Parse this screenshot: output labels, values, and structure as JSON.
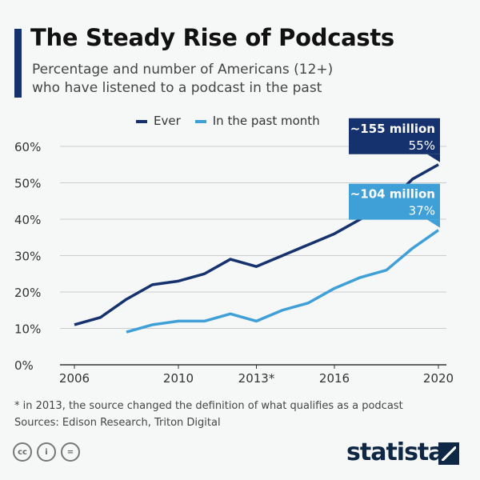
{
  "header": {
    "title": "The Steady Rise of Podcasts",
    "subtitle_line1": "Percentage and number of Americans (12+)",
    "subtitle_line2": "who have listened to a podcast in the past"
  },
  "chart_data": {
    "type": "line",
    "x": [
      2006,
      2007,
      2008,
      2009,
      2010,
      2011,
      2012,
      2013,
      2014,
      2015,
      2016,
      2017,
      2018,
      2019,
      2020
    ],
    "series": [
      {
        "name": "Ever",
        "color": "#15326e",
        "values": [
          11,
          13,
          18,
          22,
          23,
          25,
          29,
          27,
          30,
          33,
          36,
          40,
          44,
          51,
          55
        ]
      },
      {
        "name": "In the past month",
        "color": "#3fa0d8",
        "values": [
          null,
          null,
          9,
          11,
          12,
          12,
          14,
          12,
          15,
          17,
          21,
          24,
          26,
          32,
          37
        ]
      }
    ],
    "xticks": [
      {
        "value": 2006,
        "label": "2006"
      },
      {
        "value": 2010,
        "label": "2010"
      },
      {
        "value": 2013,
        "label": "2013*"
      },
      {
        "value": 2016,
        "label": "2016"
      },
      {
        "value": 2020,
        "label": "2020"
      }
    ],
    "yticks": [
      {
        "value": 0,
        "label": "0%"
      },
      {
        "value": 10,
        "label": "10%"
      },
      {
        "value": 20,
        "label": "20%"
      },
      {
        "value": 30,
        "label": "30%"
      },
      {
        "value": 40,
        "label": "40%"
      },
      {
        "value": 50,
        "label": "50%"
      },
      {
        "value": 60,
        "label": "60%"
      }
    ],
    "ylim": [
      0,
      60
    ],
    "xlim": [
      2006,
      2020
    ],
    "grid": true,
    "legend": "top",
    "annotations": [
      {
        "series": "Ever",
        "line1": "~155 million",
        "line2": "55%"
      },
      {
        "series": "In the past month",
        "line1": "~104 million",
        "line2": "37%"
      }
    ]
  },
  "footer": {
    "note": "* in 2013, the source changed the definition of what qualifies as a podcast",
    "sources": "Sources: Edison Research, Triton Digital",
    "license_icons": [
      "cc",
      "by",
      "nd"
    ],
    "logo": "statista"
  }
}
